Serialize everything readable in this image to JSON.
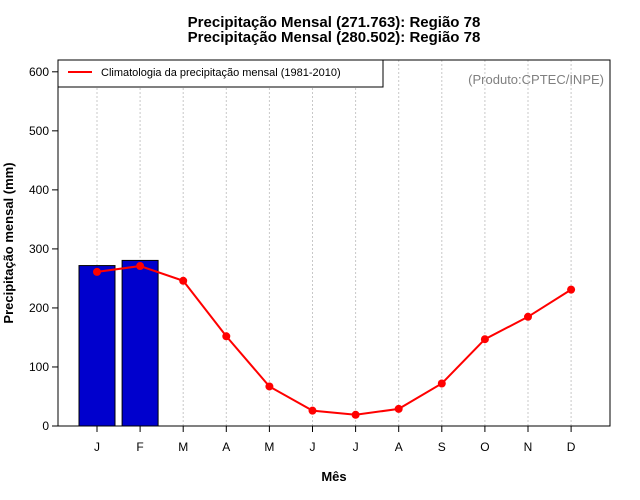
{
  "chart_data": {
    "type": "bar+line",
    "title_lines": [
      "Precipitação Mensal (271.763): Região 78",
      "Precipitação Mensal (280.502): Região 78"
    ],
    "xlabel": "Mês",
    "ylabel": "Precipitação mensal (mm)",
    "categories": [
      "J",
      "F",
      "M",
      "A",
      "M",
      "J",
      "J",
      "A",
      "S",
      "O",
      "N",
      "D"
    ],
    "ylim": [
      0,
      620
    ],
    "yticks": [
      0,
      100,
      200,
      300,
      400,
      500,
      600
    ],
    "bars": {
      "name": "Precipitação Mensal",
      "values": [
        271.763,
        280.502
      ],
      "color": "#0000cd"
    },
    "line": {
      "name": "Climatologia da precipitação mensal (1981-2010)",
      "values": [
        261,
        271,
        246,
        152,
        67,
        26,
        19,
        29,
        72,
        147,
        185,
        231
      ],
      "color": "#ff0000"
    },
    "legend": {
      "position": "top-left",
      "label": "Climatologia da precipitação mensal (1981-2010)"
    },
    "credit": "(Produto:CPTEC/INPE)",
    "grid": "vertical-dotted"
  }
}
